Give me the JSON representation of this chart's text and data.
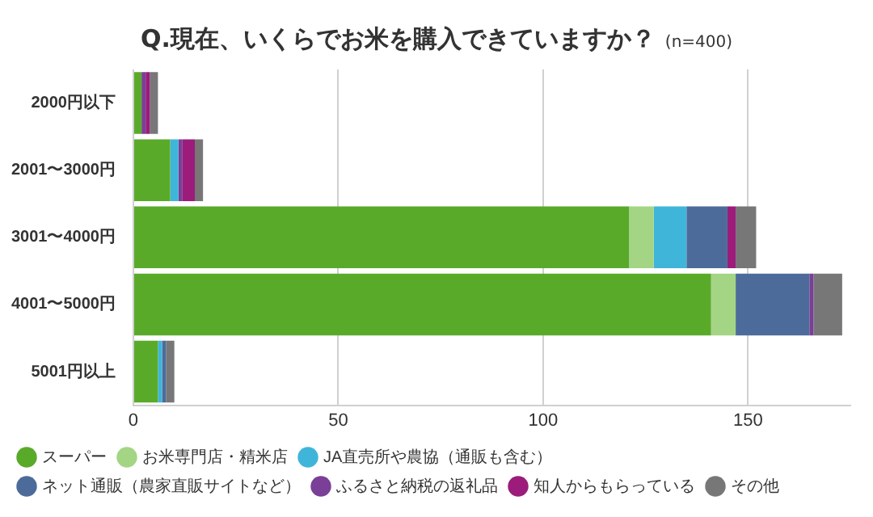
{
  "chart_data": {
    "type": "bar",
    "orientation": "horizontal",
    "stacked": true,
    "title": "Q.現在、いくらでお米を購入できていますか？",
    "subtitle": "(n=400)",
    "categories": [
      "2000円以下",
      "2001〜3000円",
      "3001〜4000円",
      "4001〜5000円",
      "5001円以上"
    ],
    "series": [
      {
        "name": "スーパー",
        "color": "#5aaa2a",
        "values": [
          2,
          9,
          121,
          141,
          6
        ]
      },
      {
        "name": "お米専門店・精米店",
        "color": "#a3d585",
        "values": [
          0,
          0,
          6,
          6,
          0
        ]
      },
      {
        "name": "JA直売所や農協（通販も含む）",
        "color": "#3fb6d9",
        "values": [
          0,
          2,
          8,
          0,
          1
        ]
      },
      {
        "name": "ネット通販（農家直販サイトなど）",
        "color": "#4d6b9a",
        "values": [
          0,
          0,
          10,
          18,
          1
        ]
      },
      {
        "name": "ふるさと納税の返礼品",
        "color": "#7a3f96",
        "values": [
          1,
          1,
          0,
          1,
          0
        ]
      },
      {
        "name": "知人からもらっている",
        "color": "#9b1c7a",
        "values": [
          1,
          3,
          2,
          0,
          0
        ]
      },
      {
        "name": "その他",
        "color": "#777777",
        "values": [
          2,
          2,
          5,
          7,
          2
        ]
      }
    ],
    "xlim": [
      0,
      175
    ],
    "xticks": [
      0,
      50,
      100,
      150
    ],
    "grid": "x",
    "legend": "bottom",
    "marker": "circle"
  }
}
